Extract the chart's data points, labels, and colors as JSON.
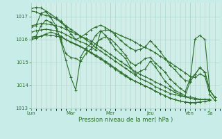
{
  "title": "",
  "xlabel": "Pression niveau de la mer( hPa )",
  "bg_color": "#c8ece8",
  "plot_bg_color": "#d0ede8",
  "line_color": "#2d6e2d",
  "grid_color": "#a8d4cc",
  "tick_color": "#2d6e2d",
  "label_color": "#2d6e2d",
  "ylim": [
    1013.0,
    1017.6
  ],
  "yticks": [
    1013,
    1014,
    1015,
    1016,
    1017
  ],
  "x_day_positions": [
    0,
    48,
    96,
    144,
    192,
    216
  ],
  "x_day_labels": [
    "Lun",
    "Mar",
    "Mer",
    "Jeu",
    "Ven",
    "Sa"
  ],
  "total_hours": 228,
  "series": [
    [
      0,
      1017.35,
      6,
      1017.4,
      12,
      1017.38,
      18,
      1017.25,
      24,
      1017.1,
      30,
      1016.95,
      36,
      1016.8,
      42,
      1016.6,
      48,
      1016.45,
      54,
      1016.3,
      60,
      1016.15,
      66,
      1016.0,
      72,
      1015.85,
      78,
      1015.65,
      84,
      1015.5,
      90,
      1015.35,
      96,
      1015.2,
      102,
      1015.05,
      108,
      1014.9,
      114,
      1014.75,
      120,
      1014.6,
      126,
      1014.45,
      132,
      1014.3,
      138,
      1014.2,
      144,
      1014.1,
      150,
      1013.95,
      156,
      1013.85,
      162,
      1013.75,
      168,
      1013.65,
      174,
      1013.6,
      180,
      1013.55,
      186,
      1013.5,
      192,
      1013.5,
      198,
      1013.45,
      204,
      1013.4,
      210,
      1013.4,
      216,
      1013.4
    ],
    [
      0,
      1016.6,
      6,
      1016.65,
      12,
      1016.7,
      18,
      1016.68,
      24,
      1016.65,
      30,
      1016.6,
      36,
      1016.55,
      42,
      1016.45,
      48,
      1016.35,
      54,
      1016.25,
      60,
      1016.15,
      66,
      1016.05,
      72,
      1015.95,
      78,
      1015.8,
      84,
      1015.65,
      90,
      1015.5,
      96,
      1015.35,
      102,
      1015.2,
      108,
      1015.05,
      114,
      1014.9,
      120,
      1014.75,
      126,
      1014.6,
      132,
      1014.48,
      138,
      1014.38,
      144,
      1014.28,
      150,
      1014.15,
      156,
      1014.05,
      162,
      1013.95,
      168,
      1013.82,
      174,
      1013.7,
      180,
      1013.6,
      186,
      1013.5,
      192,
      1013.45,
      198,
      1013.4,
      204,
      1013.38,
      210,
      1013.38,
      216,
      1013.4
    ],
    [
      0,
      1016.05,
      6,
      1016.1,
      12,
      1016.15,
      18,
      1016.2,
      24,
      1016.18,
      30,
      1016.15,
      36,
      1016.1,
      42,
      1016.0,
      48,
      1015.9,
      54,
      1015.8,
      60,
      1015.7,
      66,
      1015.58,
      72,
      1015.45,
      78,
      1015.32,
      84,
      1015.2,
      90,
      1015.05,
      96,
      1014.9,
      102,
      1014.75,
      108,
      1014.6,
      114,
      1014.45,
      120,
      1014.3,
      126,
      1014.18,
      132,
      1014.08,
      138,
      1013.98,
      144,
      1013.88,
      150,
      1013.75,
      156,
      1013.65,
      162,
      1013.55,
      168,
      1013.45,
      174,
      1013.38,
      180,
      1013.32,
      186,
      1013.28,
      192,
      1013.25,
      198,
      1013.25,
      204,
      1013.28,
      210,
      1013.3,
      216,
      1013.35
    ],
    [
      0,
      1016.0,
      6,
      1016.05,
      12,
      1016.15,
      18,
      1016.25,
      24,
      1016.32,
      30,
      1016.25,
      36,
      1016.15,
      42,
      1016.0,
      48,
      1015.88,
      54,
      1015.78,
      60,
      1015.68,
      66,
      1015.55,
      72,
      1015.42,
      78,
      1015.28,
      84,
      1015.15,
      90,
      1015.0,
      96,
      1014.85,
      102,
      1014.7,
      108,
      1014.55,
      114,
      1014.4,
      120,
      1014.28,
      126,
      1014.18,
      132,
      1014.08,
      138,
      1013.98,
      144,
      1013.88,
      150,
      1013.75,
      156,
      1013.65,
      162,
      1013.55,
      168,
      1013.45,
      174,
      1013.38,
      180,
      1013.32,
      186,
      1013.28,
      192,
      1013.25,
      198,
      1013.25,
      204,
      1013.28,
      210,
      1013.3,
      216,
      1013.35
    ],
    [
      0,
      1017.25,
      6,
      1017.2,
      12,
      1017.1,
      18,
      1017.05,
      24,
      1017.0,
      30,
      1016.9,
      36,
      1016.75,
      42,
      1016.55,
      48,
      1016.25,
      54,
      1016.0,
      60,
      1015.9,
      66,
      1015.82,
      72,
      1015.68,
      78,
      1015.55,
      84,
      1016.35,
      90,
      1016.42,
      96,
      1016.38,
      102,
      1016.28,
      108,
      1016.18,
      114,
      1016.08,
      120,
      1016.0,
      126,
      1015.88,
      132,
      1015.75,
      138,
      1015.65,
      144,
      1015.55,
      150,
      1015.42,
      156,
      1015.28,
      162,
      1015.15,
      168,
      1015.0,
      174,
      1014.85,
      180,
      1014.7,
      186,
      1014.55,
      192,
      1014.4,
      198,
      1014.35,
      204,
      1014.5,
      210,
      1014.4,
      216,
      1013.6,
      222,
      1013.35
    ],
    [
      0,
      1016.55,
      6,
      1016.6,
      12,
      1017.15,
      18,
      1017.22,
      24,
      1016.95,
      30,
      1016.6,
      36,
      1015.9,
      42,
      1015.1,
      48,
      1014.35,
      54,
      1013.8,
      60,
      1015.25,
      66,
      1015.62,
      72,
      1015.8,
      78,
      1016.18,
      84,
      1016.38,
      90,
      1016.18,
      96,
      1015.88,
      102,
      1015.58,
      108,
      1015.38,
      114,
      1015.18,
      120,
      1014.78,
      126,
      1014.48,
      132,
      1014.62,
      138,
      1014.72,
      144,
      1015.05,
      150,
      1014.82,
      156,
      1014.5,
      162,
      1014.18,
      168,
      1013.98,
      174,
      1013.78,
      180,
      1013.68,
      186,
      1013.55,
      192,
      1014.15,
      198,
      1014.48,
      204,
      1014.78,
      210,
      1014.58,
      216,
      1013.78,
      222,
      1013.48
    ],
    [
      0,
      1016.1,
      6,
      1016.15,
      12,
      1016.6,
      18,
      1016.85,
      24,
      1016.75,
      30,
      1016.52,
      36,
      1016.0,
      42,
      1015.38,
      48,
      1015.22,
      54,
      1015.18,
      60,
      1015.05,
      66,
      1015.38,
      72,
      1015.58,
      78,
      1015.82,
      84,
      1016.02,
      90,
      1016.12,
      96,
      1016.02,
      102,
      1015.82,
      108,
      1015.58,
      114,
      1015.32,
      120,
      1015.0,
      126,
      1014.88,
      132,
      1015.0,
      138,
      1015.18,
      144,
      1015.22,
      150,
      1014.98,
      156,
      1014.78,
      162,
      1014.58,
      168,
      1014.28,
      174,
      1014.08,
      180,
      1013.88,
      186,
      1013.72,
      192,
      1014.28,
      198,
      1014.48,
      204,
      1014.78,
      210,
      1014.58,
      216,
      1013.78,
      222,
      1013.48
    ],
    [
      0,
      1016.32,
      6,
      1016.38,
      12,
      1016.42,
      18,
      1016.45,
      24,
      1016.42,
      30,
      1016.38,
      36,
      1016.32,
      42,
      1016.22,
      48,
      1016.1,
      54,
      1016.0,
      60,
      1016.1,
      66,
      1016.25,
      72,
      1016.42,
      78,
      1016.55,
      84,
      1016.62,
      90,
      1016.52,
      96,
      1016.38,
      102,
      1016.18,
      108,
      1015.98,
      114,
      1015.78,
      120,
      1015.62,
      126,
      1015.52,
      132,
      1015.58,
      138,
      1015.68,
      144,
      1015.95,
      150,
      1015.72,
      156,
      1015.48,
      162,
      1015.18,
      168,
      1014.88,
      174,
      1014.68,
      180,
      1014.42,
      186,
      1014.22,
      192,
      1014.18,
      198,
      1016.02,
      204,
      1016.18,
      210,
      1016.0,
      216,
      1013.78,
      222,
      1013.48
    ]
  ]
}
